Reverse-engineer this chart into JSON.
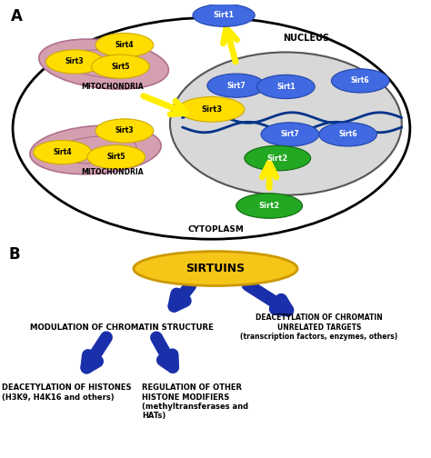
{
  "bg_color": "#ffffff",
  "panel_a_label": "A",
  "panel_b_label": "B",
  "nucleus_color": "#d8d8d8",
  "blue_color": "#4169e1",
  "yellow_color": "#ffdd00",
  "green_color": "#22a822",
  "pink_mito_color": "#d4a0b0",
  "pink_mito_edge": "#b07090",
  "arrow_yellow": "#ffee00",
  "arrow_blue": "#1a2faa",
  "nucleus_label": "NUCLEUS",
  "mito_label": "MITOCHONDRIA",
  "cyto_label": "CYTOPLASM",
  "sirtuins_label": "SIRTUINS",
  "text_modulation": "MODULATION OF CHROMATIN STRUCTURE",
  "text_deacetylation_chromatin": "DEACETYLATION OF CHROMATIN\nUNRELATED TARGETS\n(transcription factors, enzymes, others)",
  "text_deacetylation_histones": "DEACETYLATION OF HISTONES\n(H3K9, H4K16 and others)",
  "text_regulation": "REGULATION OF OTHER\nHISTONE MODIFIERS\n(methyltransferases and\nHATs)"
}
